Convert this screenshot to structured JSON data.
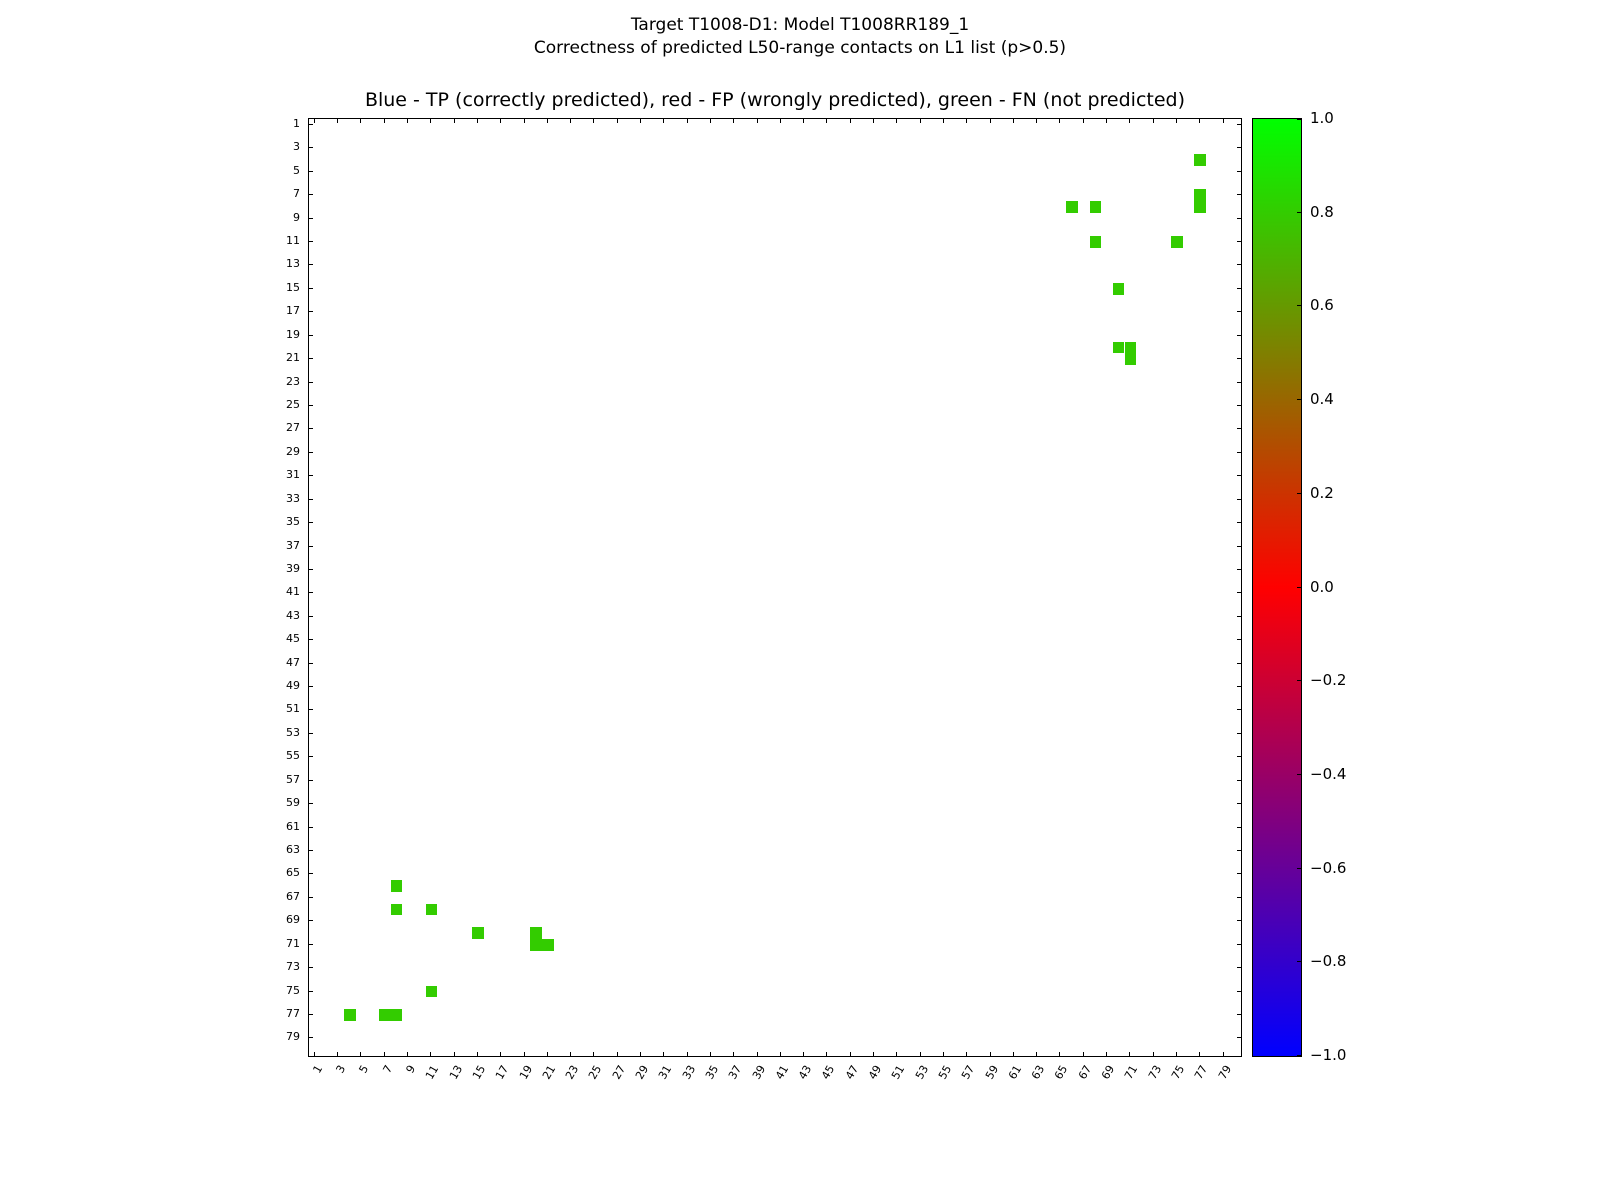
{
  "figure": {
    "title_line1": "Target T1008-D1: Model T1008RR189_1",
    "title_line2": "Correctness of predicted L50-range contacts on L1 list (p>0.5)"
  },
  "chart_data": {
    "type": "heatmap",
    "title": "Blue - TP (correctly predicted), red - FP (wrongly predicted), green - FN (not predicted)",
    "xlabel": "",
    "ylabel": "",
    "axis_range": [
      0.5,
      80.5
    ],
    "grid": false,
    "x_ticks": [
      1,
      3,
      5,
      7,
      9,
      11,
      13,
      15,
      17,
      19,
      21,
      23,
      25,
      27,
      29,
      31,
      33,
      35,
      37,
      39,
      41,
      43,
      45,
      47,
      49,
      51,
      53,
      55,
      57,
      59,
      61,
      63,
      65,
      67,
      69,
      71,
      73,
      75,
      77,
      79
    ],
    "y_ticks": [
      1,
      3,
      5,
      7,
      9,
      11,
      13,
      15,
      17,
      19,
      21,
      23,
      25,
      27,
      29,
      31,
      33,
      35,
      37,
      39,
      41,
      43,
      45,
      47,
      49,
      51,
      53,
      55,
      57,
      59,
      61,
      63,
      65,
      67,
      69,
      71,
      73,
      75,
      77,
      79
    ],
    "colors": {
      "tp": "#0000ff",
      "fp": "#ff0000",
      "fn": "#33cc00"
    },
    "tp_contacts": [],
    "fp_contacts": [],
    "fn_contacts": [
      [
        4,
        77
      ],
      [
        7,
        77
      ],
      [
        8,
        66
      ],
      [
        8,
        68
      ],
      [
        8,
        77
      ],
      [
        11,
        68
      ],
      [
        11,
        75
      ],
      [
        15,
        70
      ],
      [
        20,
        70
      ],
      [
        20,
        71
      ],
      [
        21,
        71
      ]
    ],
    "symmetric": true,
    "colorbar": {
      "range": [
        -1.0,
        1.0
      ],
      "colors_top_to_bottom": [
        "#00ff00",
        "#ff0000",
        "#0000ff"
      ],
      "tick_labels": [
        "1.0",
        "0.8",
        "0.6",
        "0.4",
        "0.2",
        "0.0",
        "−0.2",
        "−0.4",
        "−0.6",
        "−0.8",
        "−1.0"
      ],
      "tick_values": [
        1.0,
        0.8,
        0.6,
        0.4,
        0.2,
        0.0,
        -0.2,
        -0.4,
        -0.6,
        -0.8,
        -1.0
      ]
    }
  }
}
